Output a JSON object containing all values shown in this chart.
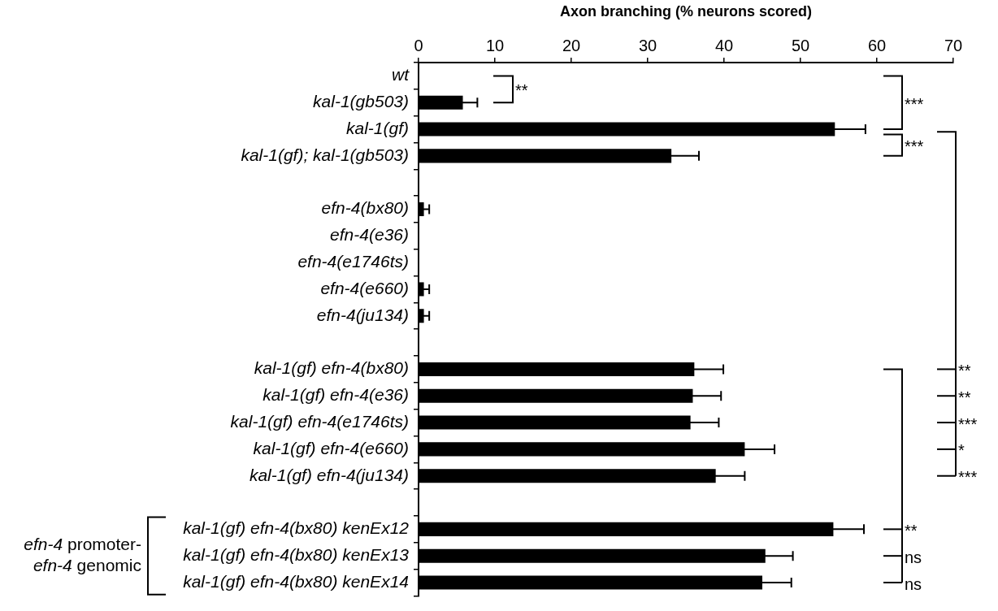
{
  "chart_data": {
    "type": "bar",
    "orientation": "horizontal",
    "xlabel": "Axon branching (% neurons scored)",
    "categories": [
      "wt",
      "kal-1(gb503)",
      "kal-1(gf)",
      "kal-1(gf); kal-1(gb503)",
      null,
      "efn-4(bx80)",
      "efn-4(e36)",
      "efn-4(e1746ts)",
      "efn-4(e660)",
      "efn-4(ju134)",
      null,
      "kal-1(gf) efn-4(bx80)",
      "kal-1(gf) efn-4(e36)",
      "kal-1(gf) efn-4(e1746ts)",
      "kal-1(gf) efn-4(e660)",
      "kal-1(gf) efn-4(ju134)",
      null,
      "kal-1(gf) efn-4(bx80) kenEx12",
      "kal-1(gf) efn-4(bx80) kenEx13",
      "kal-1(gf) efn-4(bx80) kenEx14"
    ],
    "values": [
      0,
      5.8,
      54.5,
      33.1,
      null,
      0.7,
      0,
      0,
      0.7,
      0.7,
      null,
      36.1,
      35.9,
      35.6,
      42.7,
      38.9,
      null,
      54.3,
      45.4,
      45.0
    ],
    "errors": [
      null,
      1.9,
      4.0,
      3.6,
      null,
      0.7,
      null,
      null,
      0.7,
      0.7,
      null,
      3.8,
      3.7,
      3.7,
      3.9,
      3.8,
      null,
      4.0,
      3.6,
      3.8
    ],
    "color": "#000000",
    "xlim": [
      0,
      70
    ],
    "xticks": [
      0,
      10,
      20,
      30,
      40,
      50,
      60,
      70
    ],
    "grid": false,
    "legend": false,
    "annotations": [
      "**",
      "***",
      "***",
      "**",
      "**",
      "***",
      "*",
      "***",
      "**",
      "ns",
      "ns",
      "efn-4 promoter-",
      "efn-4 genomic"
    ]
  }
}
